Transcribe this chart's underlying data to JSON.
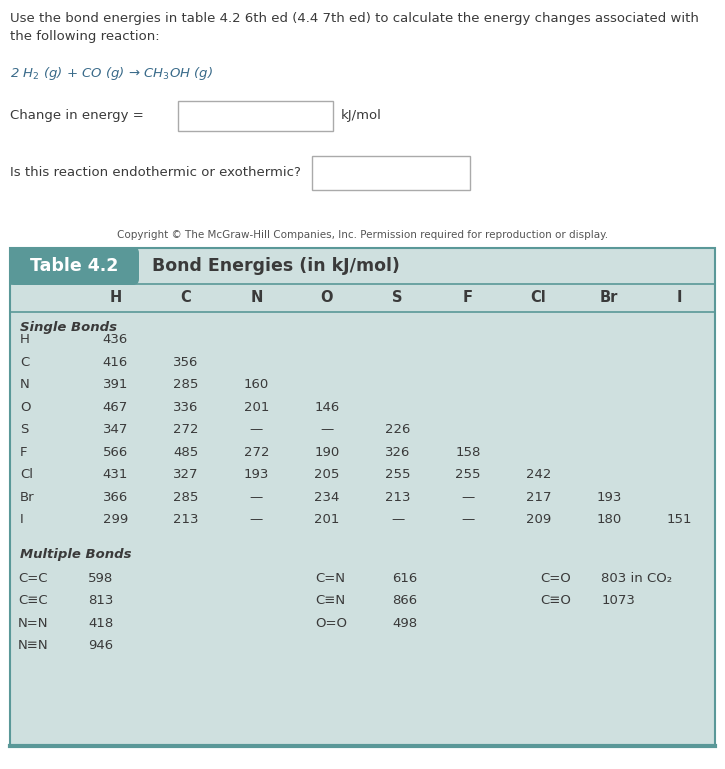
{
  "title_line1": "Use the bond energies in table 4.2 6th ed (4.4 7th ed) to calculate the energy changes associated with",
  "title_line2": "the following reaction:",
  "reaction": "2 H$_2$ (g) + CO (g) → CH$_3$OH (g)",
  "change_label": "Change in energy =",
  "kj_label": "kJ/mol",
  "endo_label": "Is this reaction endothermic or exothermic?",
  "copyright": "Copyright © The McGraw-Hill Companies, Inc. Permission required for reproduction or display.",
  "table_label": "Table 4.2",
  "table_title": "Bond Energies (in kJ/mol)",
  "table_bg": "#cfe0df",
  "table_header_bg": "#5a9898",
  "header_cols": [
    "H",
    "C",
    "N",
    "O",
    "S",
    "F",
    "Cl",
    "Br",
    "I"
  ],
  "single_bonds_label": "Single Bonds",
  "rows": [
    [
      "H",
      "436",
      "",
      "",
      "",
      "",
      "",
      "",
      "",
      ""
    ],
    [
      "C",
      "416",
      "356",
      "",
      "",
      "",
      "",
      "",
      "",
      ""
    ],
    [
      "N",
      "391",
      "285",
      "160",
      "",
      "",
      "",
      "",
      "",
      ""
    ],
    [
      "O",
      "467",
      "336",
      "201",
      "146",
      "",
      "",
      "",
      "",
      ""
    ],
    [
      "S",
      "347",
      "272",
      "—",
      "—",
      "226",
      "",
      "",
      "",
      ""
    ],
    [
      "F",
      "566",
      "485",
      "272",
      "190",
      "326",
      "158",
      "",
      "",
      ""
    ],
    [
      "Cl",
      "431",
      "327",
      "193",
      "205",
      "255",
      "255",
      "242",
      "",
      ""
    ],
    [
      "Br",
      "366",
      "285",
      "—",
      "234",
      "213",
      "—",
      "217",
      "193",
      ""
    ],
    [
      "I",
      "299",
      "213",
      "—",
      "201",
      "—",
      "—",
      "209",
      "180",
      "151"
    ]
  ],
  "multiple_bonds_label": "Multiple Bonds",
  "multi_col1": [
    [
      "C=C",
      "598"
    ],
    [
      "C≡C",
      "813"
    ],
    [
      "N=N",
      "418"
    ],
    [
      "N≡N",
      "946"
    ]
  ],
  "multi_col2": [
    [
      "C=N",
      "616"
    ],
    [
      "C≡N",
      "866"
    ],
    [
      "O=O",
      "498"
    ]
  ],
  "multi_col3": [
    [
      "C=O",
      "803 in CO₂"
    ],
    [
      "C≡O",
      "1073"
    ]
  ],
  "page_bg": "#ffffff",
  "text_color": "#3a3a3a",
  "table_text_color": "#3a3a3a",
  "border_color": "#5a9898"
}
